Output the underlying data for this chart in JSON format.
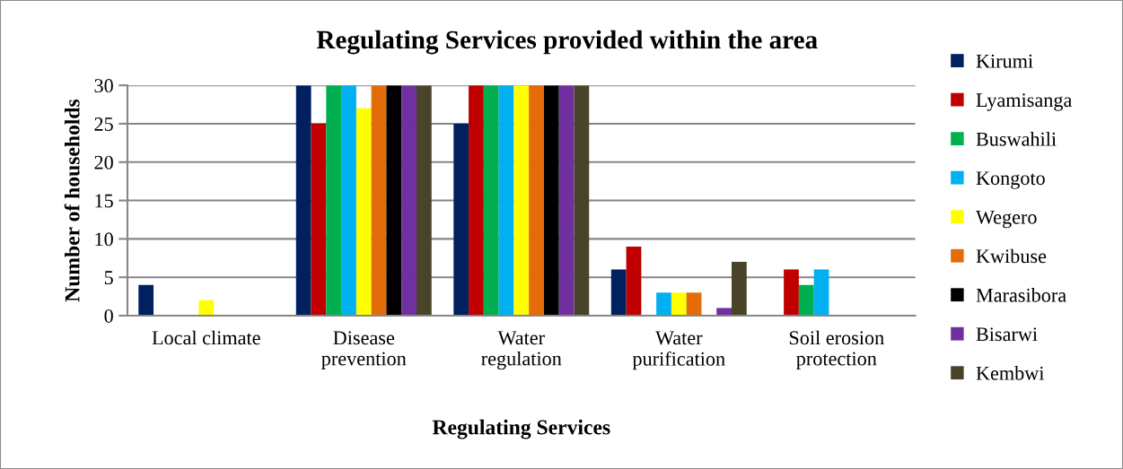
{
  "chart_data": {
    "type": "bar",
    "title": "Regulating Services provided within the area",
    "xlabel": "Regulating Services",
    "ylabel": "Number of households",
    "categories": [
      "Local climate",
      "Disease\nprevention",
      "Water\nregulation",
      "Water\npurification",
      "Soil erosion\nprotection"
    ],
    "series": [
      {
        "name": "Kirumi",
        "color": "#002060",
        "values": [
          4,
          30,
          25,
          6,
          0
        ]
      },
      {
        "name": "Lyamisanga",
        "color": "#c00000",
        "values": [
          0,
          25,
          30,
          9,
          6
        ]
      },
      {
        "name": "Buswahili",
        "color": "#00b050",
        "values": [
          0,
          30,
          30,
          0,
          4
        ]
      },
      {
        "name": "Kongoto",
        "color": "#00b0f0",
        "values": [
          0,
          30,
          30,
          3,
          6
        ]
      },
      {
        "name": "Wegero",
        "color": "#ffff00",
        "values": [
          2,
          27,
          30,
          3,
          0
        ]
      },
      {
        "name": "Kwibuse",
        "color": "#e36c09",
        "values": [
          0,
          30,
          30,
          3,
          0
        ]
      },
      {
        "name": "Marasibora",
        "color": "#000000",
        "values": [
          0,
          30,
          30,
          0,
          0
        ]
      },
      {
        "name": "Bisarwi",
        "color": "#7030a0",
        "values": [
          0,
          30,
          30,
          1,
          0
        ]
      },
      {
        "name": "Kembwi",
        "color": "#494429",
        "values": [
          0,
          30,
          30,
          7,
          0
        ]
      }
    ],
    "ylim": [
      0,
      30
    ],
    "yticks": [
      0,
      5,
      10,
      15,
      20,
      25,
      30
    ],
    "grid": "y",
    "legend": "right"
  }
}
